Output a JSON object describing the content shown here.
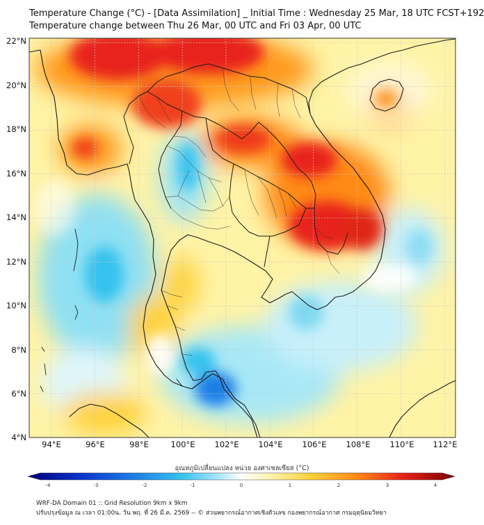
{
  "header": {
    "line1": "Temperature Change (°C) - [Data Assimilation] _ Initial Time : Wednesday 25 Mar, 18 UTC FCST+192",
    "line2": "Temperature change between Thu 26 Mar, 00 UTC and Fri 03 Apr, 00 UTC"
  },
  "map": {
    "lon_labels": [
      "94°E",
      "96°E",
      "98°E",
      "100°E",
      "102°E",
      "104°E",
      "106°E",
      "108°E",
      "110°E",
      "112°E"
    ],
    "lat_labels": [
      "22°N",
      "20°N",
      "18°N",
      "16°N",
      "14°N",
      "12°N",
      "10°N",
      "8°N",
      "6°N",
      "4°N"
    ],
    "extent": {
      "lon_min": 93,
      "lon_max": 112.5,
      "lat_min": 4,
      "lat_max": 22.2
    }
  },
  "colorbar": {
    "title": "อุณหภูมิเปลี่ยนแปลง หน่วย องศาเซลเซียส (°C)",
    "ticks": [
      "-4",
      "-3",
      "-2",
      "-1",
      "0",
      "1",
      "2",
      "3",
      "4"
    ],
    "min": -4,
    "max": 4,
    "colors": [
      "#00007a",
      "#0a32c8",
      "#1d7fe6",
      "#35c2ee",
      "#bdeefa",
      "#ffffff",
      "#fff6b8",
      "#ffd23a",
      "#ff8a17",
      "#e8201a",
      "#7a0000"
    ]
  },
  "footer": {
    "line1": "WRF-DA Domain 01 :: Grid Resolution 9km x 9km",
    "line2": "ปรับปรุงข้อมูล ณ เวลา 01:00น. วัน พฤ. ที่ 26 มี.ค. 2569 -- © ส่วนพยากรณ์อากาศเชิงตัวเลข กองพยากรณ์อากาศ กรมอุตุนิยมวิทยา"
  }
}
